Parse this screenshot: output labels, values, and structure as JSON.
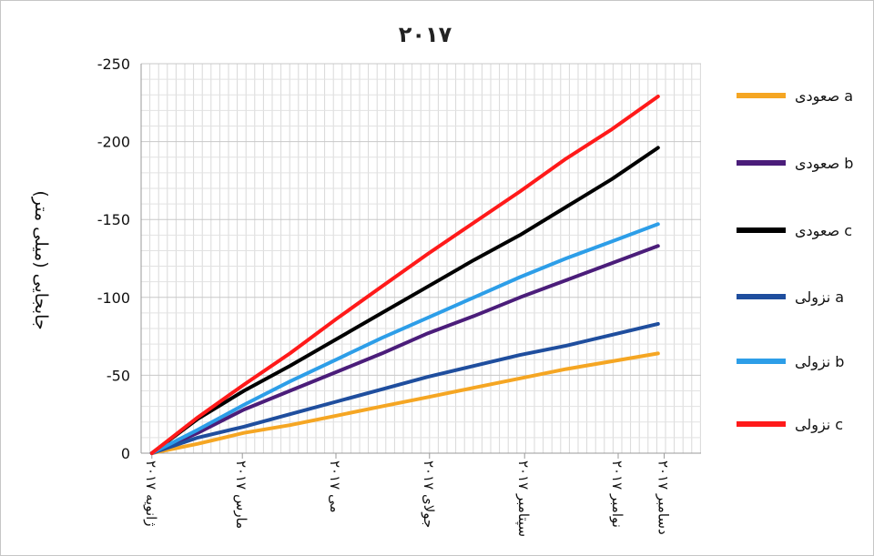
{
  "chart_data": {
    "type": "line",
    "title": "۲۰۱۷",
    "ylabel": "جابجایی (میلی متر)",
    "xlabel": "",
    "ylim": [
      -250,
      0
    ],
    "y_ticks": [
      0,
      -50,
      -100,
      -150,
      -200,
      -250
    ],
    "x_ticks": [
      "ژانویه ۲۰۱۷",
      "مارس ۲۰۱۷",
      "می ۲۰۱۷",
      "جولای ۲۰۱۷",
      "سپتامبر ۲۰۱۷",
      "نوامبر ۲۰۱۷",
      "دسامبر ۲۰۱۷"
    ],
    "x_tick_positions": [
      0,
      59,
      120,
      181,
      243,
      304,
      334
    ],
    "x": [
      0,
      30,
      60,
      90,
      120,
      150,
      180,
      210,
      240,
      270,
      300,
      330
    ],
    "grid": true,
    "legend_position": "right",
    "series": [
      {
        "name": "صعودی a",
        "color": "#f5a623",
        "values": [
          0,
          -6,
          -13,
          -18,
          -24,
          -30,
          -36,
          -42,
          -48,
          -54,
          -59,
          -64
        ]
      },
      {
        "name": "صعودی b",
        "color": "#4b1d7a",
        "values": [
          0,
          -13,
          -28,
          -40,
          -52,
          -64,
          -77,
          -88,
          -100,
          -111,
          -122,
          -133
        ]
      },
      {
        "name": "صعودی c",
        "color": "#000000",
        "values": [
          0,
          -22,
          -40,
          -56,
          -73,
          -90,
          -107,
          -124,
          -140,
          -158,
          -176,
          -196
        ]
      },
      {
        "name": "نزولی a",
        "color": "#1f4e9e",
        "values": [
          0,
          -10,
          -17,
          -25,
          -33,
          -41,
          -49,
          -56,
          -63,
          -69,
          -76,
          -83
        ]
      },
      {
        "name": "نزولی b",
        "color": "#2d9ee8",
        "values": [
          0,
          -15,
          -31,
          -46,
          -60,
          -74,
          -87,
          -100,
          -113,
          -125,
          -136,
          -147
        ]
      },
      {
        "name": "نزولی c",
        "color": "#ff1a1a",
        "values": [
          0,
          -23,
          -44,
          -64,
          -86,
          -107,
          -128,
          -148,
          -168,
          -189,
          -208,
          -229
        ]
      }
    ]
  }
}
